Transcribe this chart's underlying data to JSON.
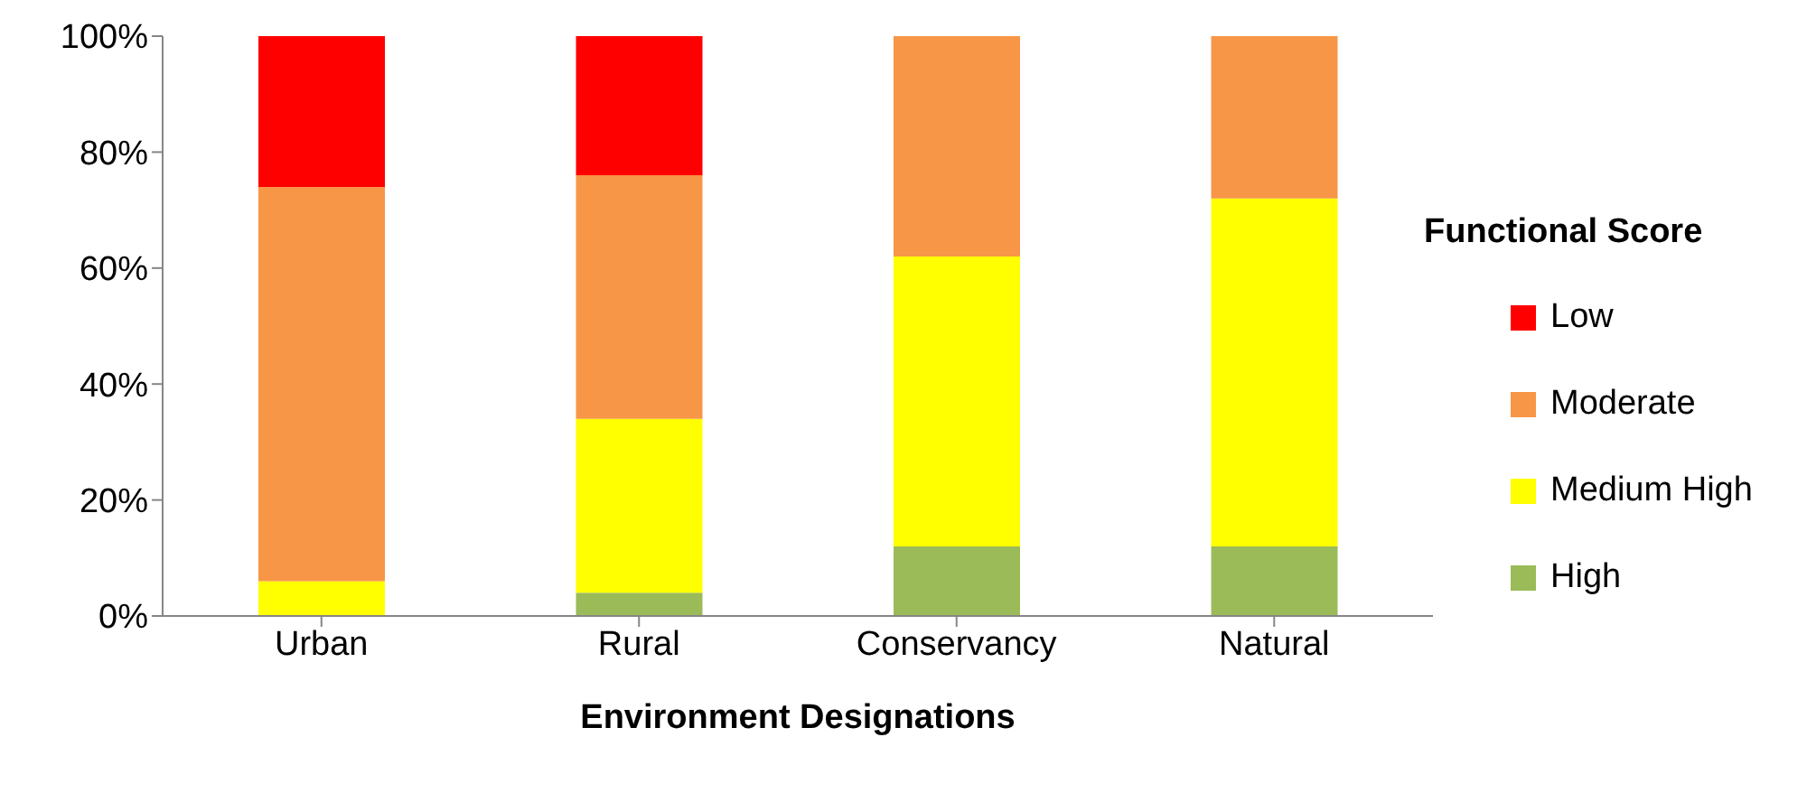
{
  "chart_data": {
    "type": "bar",
    "stacked": true,
    "xlabel": "Environment Designations",
    "legend_title": "Functional Score",
    "legend": "right",
    "grid": false,
    "categories": [
      "Urban",
      "Rural",
      "Conservancy",
      "Natural"
    ],
    "series": [
      {
        "name": "High",
        "color": "#9bbb59",
        "values": [
          0,
          4,
          12,
          12
        ]
      },
      {
        "name": "Medium High",
        "color": "#ffff00",
        "values": [
          6,
          30,
          50,
          60
        ]
      },
      {
        "name": "Moderate",
        "color": "#f79646",
        "values": [
          68,
          42,
          38,
          28
        ]
      },
      {
        "name": "Low",
        "color": "#ff0000",
        "values": [
          26,
          24,
          0,
          0
        ]
      }
    ],
    "ylim": [
      0,
      100
    ],
    "yticks": [
      {
        "value": 0,
        "label": "0%"
      },
      {
        "value": 20,
        "label": "20%"
      },
      {
        "value": 40,
        "label": "40%"
      },
      {
        "value": 60,
        "label": "60%"
      },
      {
        "value": 80,
        "label": "80%"
      },
      {
        "value": 100,
        "label": "100%"
      }
    ]
  }
}
